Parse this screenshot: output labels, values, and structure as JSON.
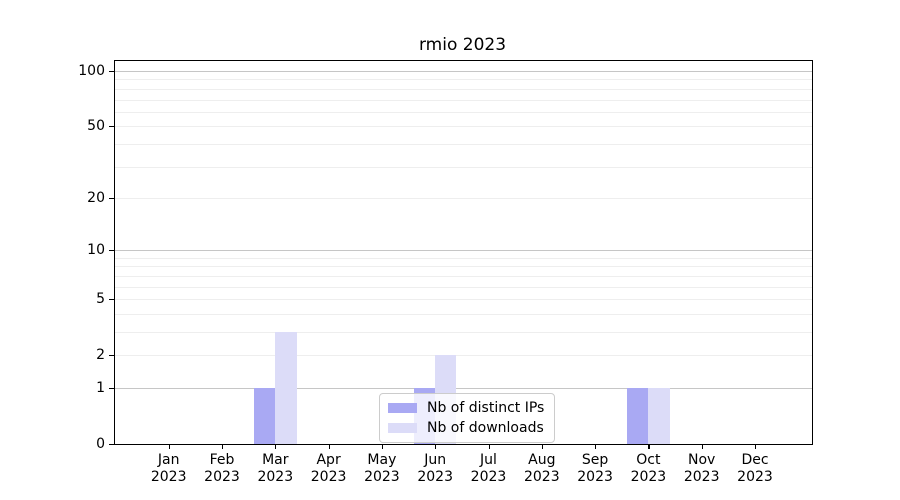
{
  "chart_data": {
    "type": "bar",
    "title": "rmio 2023",
    "categories": [
      "Jan",
      "Feb",
      "Mar",
      "Apr",
      "May",
      "Jun",
      "Jul",
      "Aug",
      "Sep",
      "Oct",
      "Nov",
      "Dec"
    ],
    "category_year": "2023",
    "series": [
      {
        "name": "Nb of distinct IPs",
        "color": "#a9a9f3",
        "values": [
          0,
          0,
          1,
          0,
          0,
          1,
          0,
          0,
          0,
          1,
          0,
          0
        ]
      },
      {
        "name": "Nb of downloads",
        "color": "#dcdcf8",
        "values": [
          0,
          0,
          3,
          0,
          0,
          2,
          0,
          0,
          0,
          1,
          0,
          0
        ]
      }
    ],
    "y_axis": {
      "scale": "log1p",
      "ticks": [
        0,
        1,
        2,
        5,
        10,
        20,
        50,
        100
      ],
      "max": 113.3,
      "major_gridlines": [
        1,
        10,
        100
      ],
      "minor_gridlines": [
        2,
        3,
        4,
        5,
        6,
        7,
        8,
        9,
        20,
        30,
        40,
        50,
        60,
        70,
        80,
        90
      ]
    },
    "x_axis": {
      "label_lines": 2
    },
    "legend": {
      "position": "lower center"
    },
    "colors": {
      "grid_major": "#c6c6c6",
      "grid_minor": "#eeeeee",
      "axis": "#000000",
      "text": "#000000",
      "background": "#ffffff"
    }
  }
}
